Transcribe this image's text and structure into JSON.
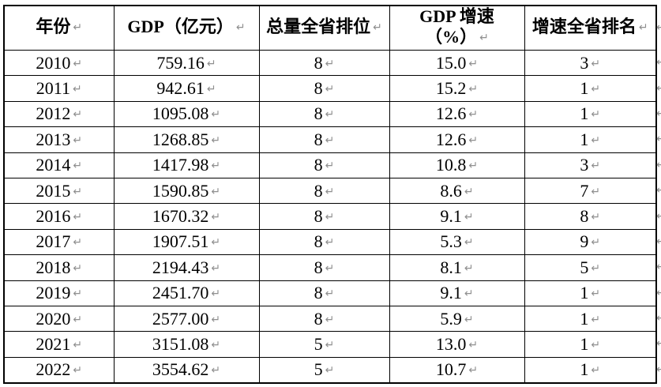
{
  "marks": {
    "cell_end": "↵",
    "row_end": "↵"
  },
  "colors": {
    "background": "#ffffff",
    "border": "#000000",
    "text": "#000000",
    "formatting_mark": "#8f8f8f"
  },
  "table": {
    "headers": [
      {
        "lines": [
          "年份"
        ]
      },
      {
        "lines": [
          "GDP（亿元）"
        ]
      },
      {
        "lines": [
          "总量全省排位"
        ]
      },
      {
        "lines": [
          "GDP 增速",
          "（%）"
        ]
      },
      {
        "lines": [
          "增速全省排名"
        ]
      }
    ],
    "rows": [
      [
        "2010",
        "759.16",
        "8",
        "15.0",
        "3"
      ],
      [
        "2011",
        "942.61",
        "8",
        "15.2",
        "1"
      ],
      [
        "2012",
        "1095.08",
        "8",
        "12.6",
        "1"
      ],
      [
        "2013",
        "1268.85",
        "8",
        "12.6",
        "1"
      ],
      [
        "2014",
        "1417.98",
        "8",
        "10.8",
        "3"
      ],
      [
        "2015",
        "1590.85",
        "8",
        "8.6",
        "7"
      ],
      [
        "2016",
        "1670.32",
        "8",
        "9.1",
        "8"
      ],
      [
        "2017",
        "1907.51",
        "8",
        "5.3",
        "9"
      ],
      [
        "2018",
        "2194.43",
        "8",
        "8.1",
        "5"
      ],
      [
        "2019",
        "2451.70",
        "8",
        "9.1",
        "1"
      ],
      [
        "2020",
        "2577.00",
        "8",
        "5.9",
        "1"
      ],
      [
        "2021",
        "3151.08",
        "5",
        "13.0",
        "1"
      ],
      [
        "2022",
        "3554.62",
        "5",
        "10.7",
        "1"
      ]
    ]
  }
}
